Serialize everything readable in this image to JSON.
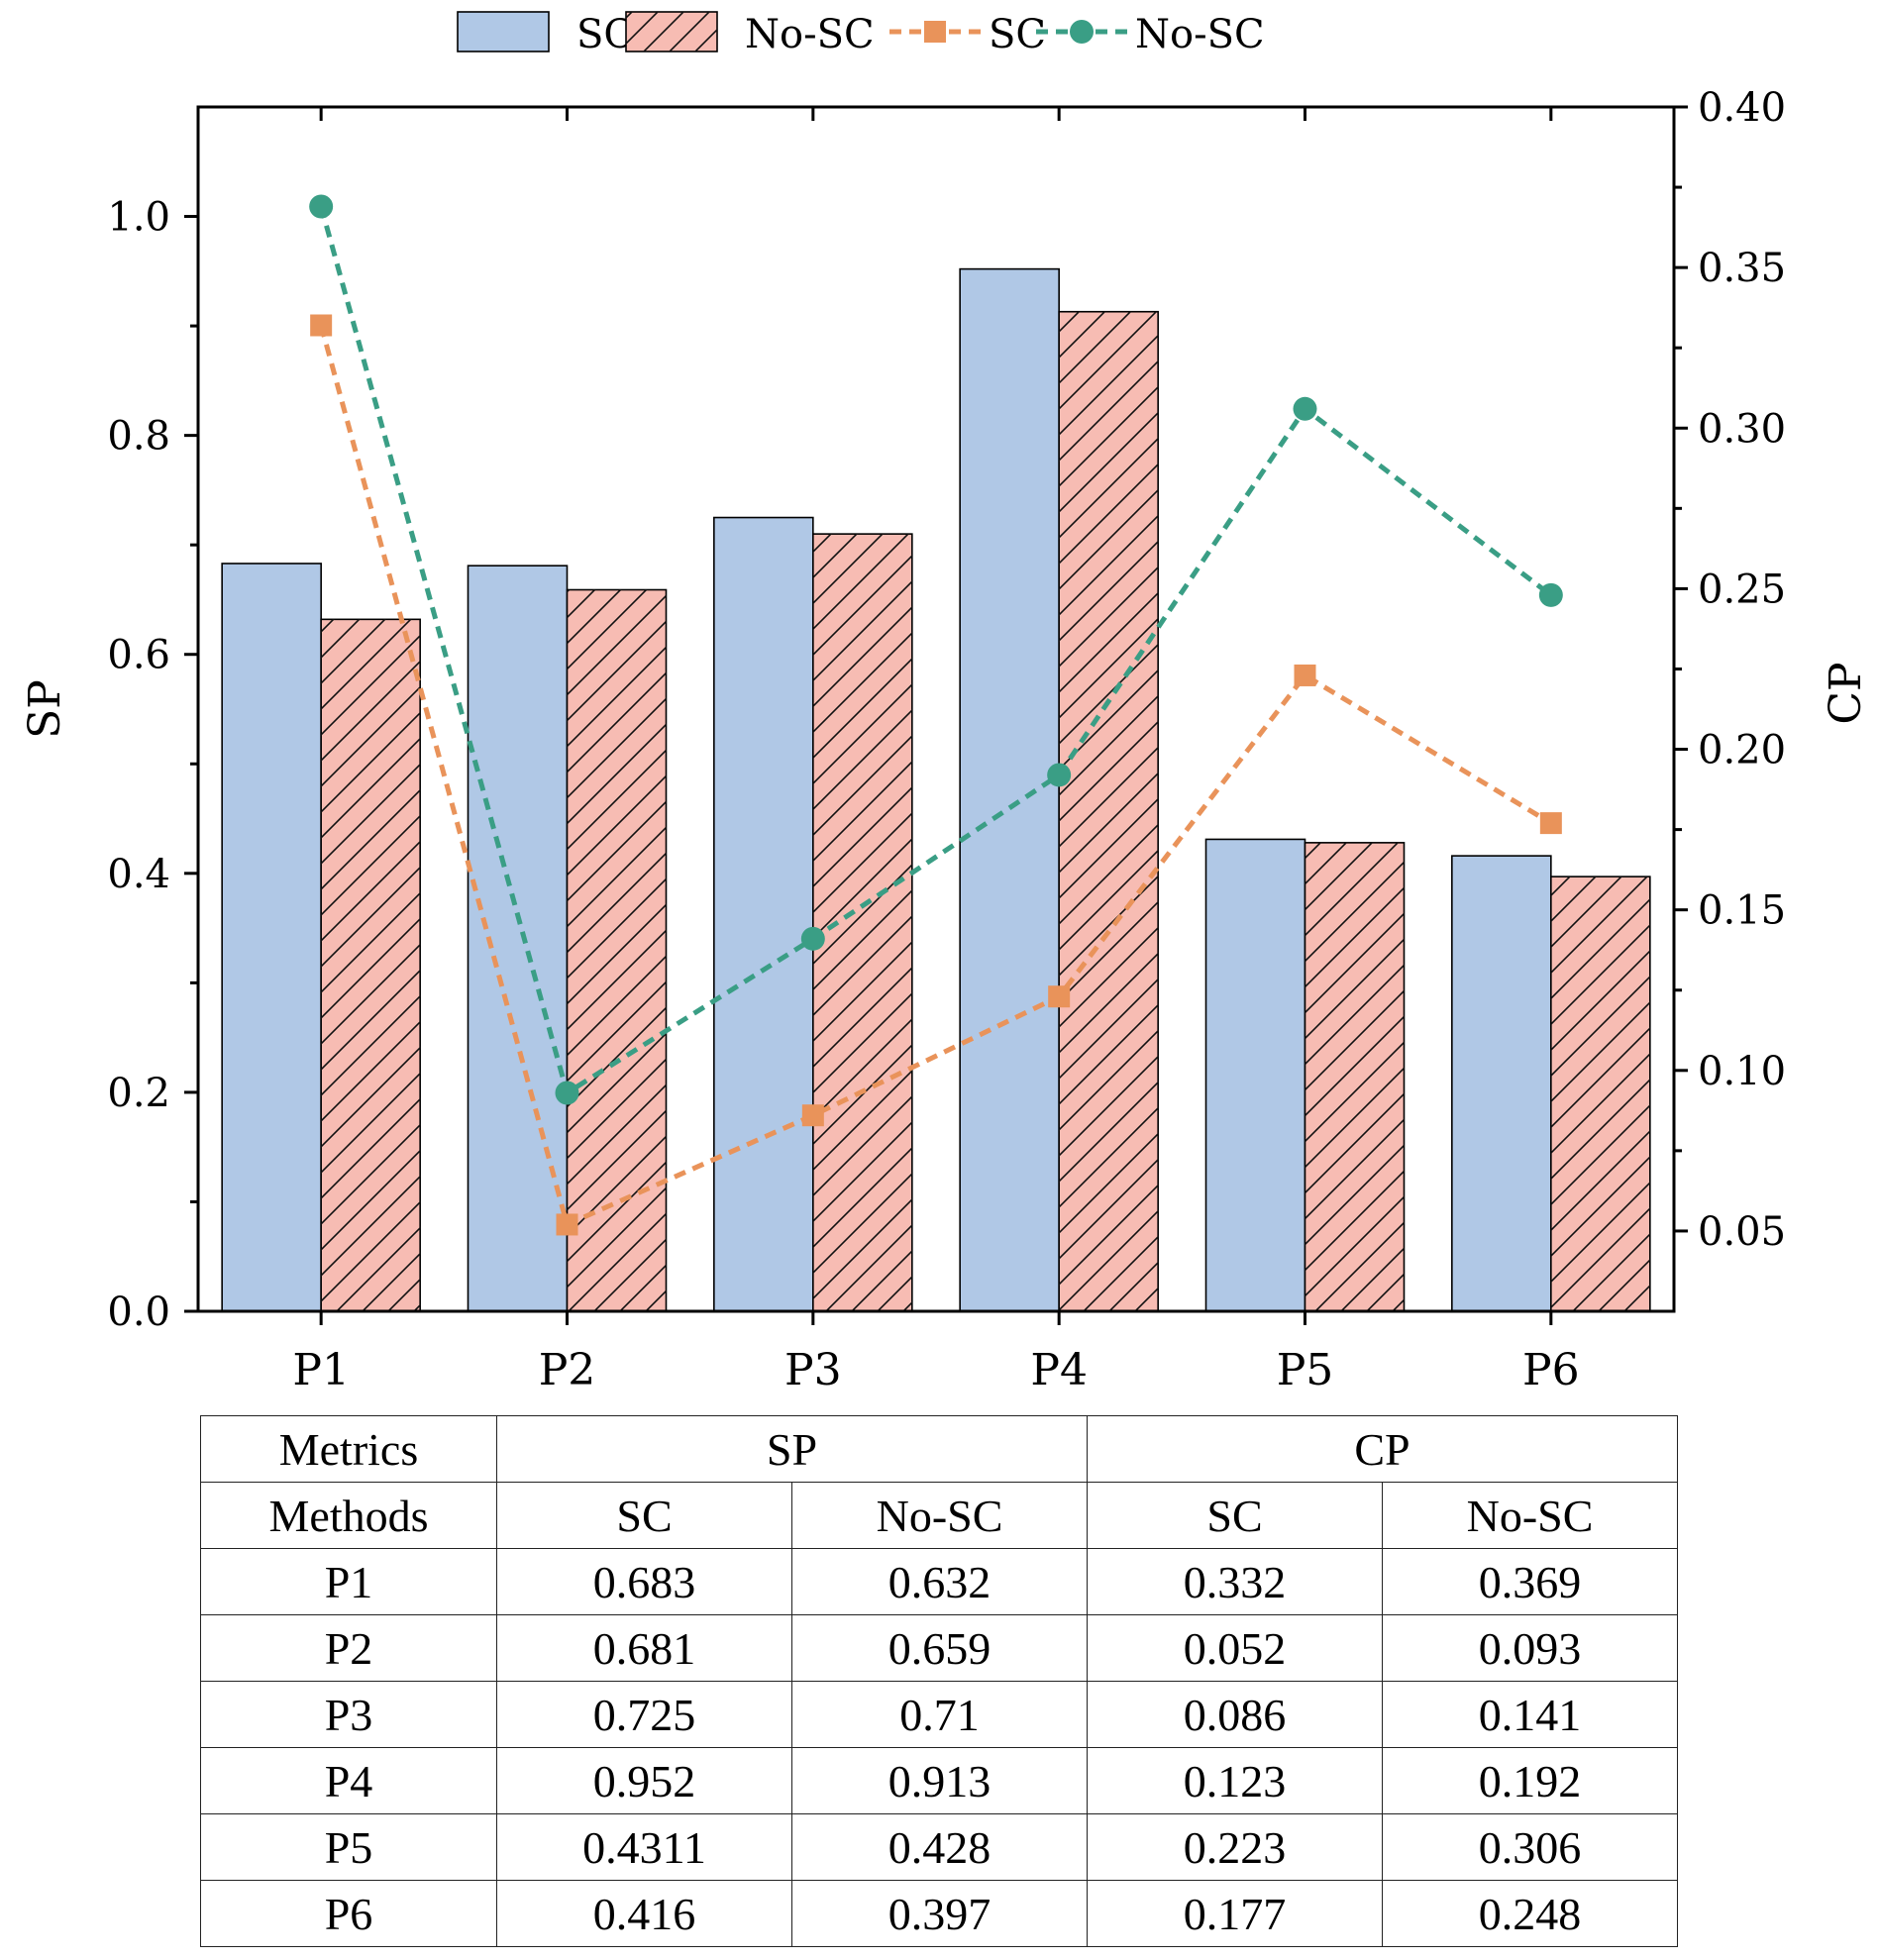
{
  "chart_data": {
    "type": "bar",
    "categories": [
      "P1",
      "P2",
      "P3",
      "P4",
      "P5",
      "P6"
    ],
    "series": [
      {
        "name": "SC",
        "kind": "bar",
        "axis": "left",
        "color": "#b0c8e6",
        "pattern": "none",
        "values": [
          0.683,
          0.681,
          0.725,
          0.952,
          0.4311,
          0.416
        ]
      },
      {
        "name": "No-SC",
        "kind": "bar",
        "axis": "left",
        "color": "#f7bcb3",
        "pattern": "hatch",
        "values": [
          0.632,
          0.659,
          0.71,
          0.913,
          0.428,
          0.397
        ]
      },
      {
        "name": "SC",
        "kind": "line",
        "axis": "right",
        "color": "#e9935a",
        "marker": "square",
        "linestyle": "dashed",
        "values": [
          0.332,
          0.052,
          0.086,
          0.123,
          0.223,
          0.177
        ]
      },
      {
        "name": "No-SC",
        "kind": "line",
        "axis": "right",
        "color": "#3a9e85",
        "marker": "circle",
        "linestyle": "dashed",
        "values": [
          0.369,
          0.093,
          0.141,
          0.192,
          0.306,
          0.248
        ]
      }
    ],
    "ylabel": "SP",
    "y2label": "CP",
    "ylim": [
      0,
      1.1
    ],
    "y2lim": [
      0.025,
      0.4
    ],
    "yticks": [
      "0.0",
      "0.2",
      "0.4",
      "0.6",
      "0.8",
      "1.0"
    ],
    "yticks_values": [
      0,
      0.2,
      0.4,
      0.6,
      0.8,
      1.0
    ],
    "y2ticks": [
      "0.05",
      "0.10",
      "0.15",
      "0.20",
      "0.25",
      "0.30",
      "0.35",
      "0.40"
    ],
    "y2ticks_values": [
      0.05,
      0.1,
      0.15,
      0.2,
      0.25,
      0.3,
      0.35,
      0.4
    ],
    "legend_position": "top-center",
    "grid": false
  },
  "table": {
    "header1": {
      "metrics": "Metrics",
      "sp": "SP",
      "cp": "CP"
    },
    "header2": {
      "methods": "Methods",
      "sp_sc": "SC",
      "sp_nosc": "No-SC",
      "cp_sc": "SC",
      "cp_nosc": "No-SC"
    },
    "rows": [
      [
        "P1",
        "0.683",
        "0.632",
        "0.332",
        "0.369"
      ],
      [
        "P2",
        "0.681",
        "0.659",
        "0.052",
        "0.093"
      ],
      [
        "P3",
        "0.725",
        "0.71",
        "0.086",
        "0.141"
      ],
      [
        "P4",
        "0.952",
        "0.913",
        "0.123",
        "0.192"
      ],
      [
        "P5",
        "0.4311",
        "0.428",
        "0.223",
        "0.306"
      ],
      [
        "P6",
        "0.416",
        "0.397",
        "0.177",
        "0.248"
      ]
    ]
  }
}
